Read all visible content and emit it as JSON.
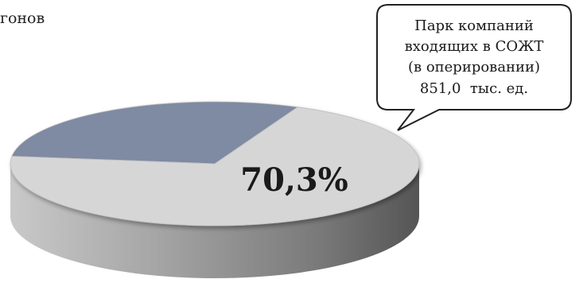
{
  "fragment_text": "гонов",
  "chart_data": {
    "type": "pie",
    "slices": [
      {
        "label": "",
        "value": 70.3,
        "color": "#d6d6d6"
      },
      {
        "label": "",
        "value": 29.7,
        "color": "#7f8aa3"
      }
    ],
    "data_labels": [
      "70,3%"
    ],
    "callout": {
      "lines": [
        "Парк компаний",
        "входящих в СОЖТ",
        "(в оперировании)",
        "851,0  тыс. ед."
      ]
    },
    "title": "",
    "legend": "none"
  }
}
